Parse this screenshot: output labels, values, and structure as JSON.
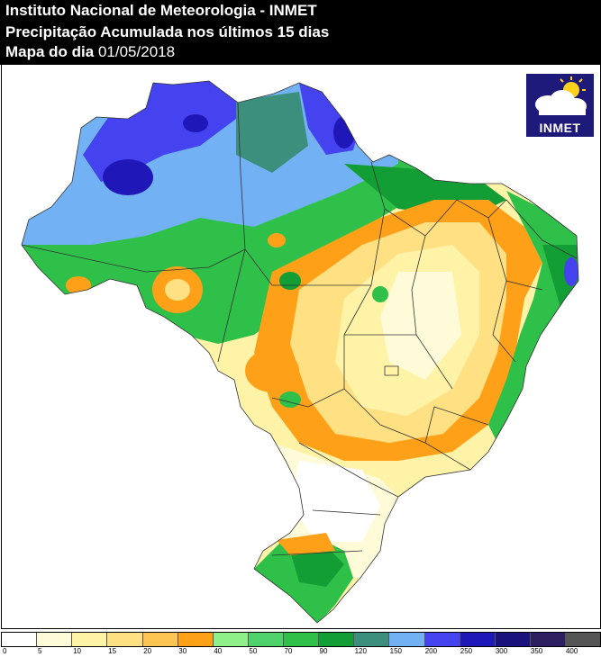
{
  "header": {
    "line1": "Instituto Nacional de Meteorologia - INMET",
    "line2": "Precipitação Acumulada nos últimos 15 dias",
    "line3_prefix": "Mapa do dia ",
    "date": "01/05/2018"
  },
  "logo": {
    "text": "INMET",
    "icon": "sun-cloud-icon"
  },
  "legend": {
    "ticks": [
      "0",
      "5",
      "10",
      "15",
      "20",
      "30",
      "40",
      "50",
      "70",
      "90",
      "120",
      "150",
      "200",
      "250",
      "300",
      "350",
      "400"
    ],
    "colors": [
      "#ffffff",
      "#fffbd9",
      "#fff3a8",
      "#ffe083",
      "#ffc552",
      "#ffa019",
      "#8ff08a",
      "#4fd26c",
      "#2fc04a",
      "#139e35",
      "#3c8f7d",
      "#72b2f4",
      "#4543f0",
      "#2017b9",
      "#19127c",
      "#2d1e5f",
      "#555555"
    ]
  },
  "map": {
    "description_colors": {
      "very_dry": "#ffffff",
      "dry": "#fff3a8",
      "moderate": "#ffa019",
      "wet": "#2fc04a",
      "very_wet": "#2017b9"
    }
  }
}
